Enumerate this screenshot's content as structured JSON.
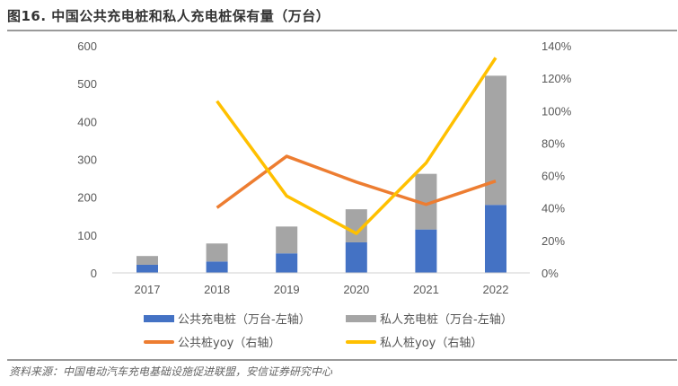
{
  "title": "图16. 中国公共充电桩和私人充电桩保有量（万台）",
  "source": "资料来源：中国电动汽车充电基础设施促进联盟，安信证券研究中心",
  "chart_data": {
    "type": "bar",
    "stacked": true,
    "title": "图16. 中国公共充电桩和私人充电桩保有量（万台）",
    "categories": [
      "2017",
      "2018",
      "2019",
      "2020",
      "2021",
      "2022"
    ],
    "left_axis": {
      "min": 0,
      "max": 600,
      "ticks": [
        "0",
        "100",
        "200",
        "300",
        "400",
        "500",
        "600"
      ]
    },
    "right_axis": {
      "min": 0,
      "max": 140,
      "ticks": [
        "0%",
        "20%",
        "40%",
        "60%",
        "80%",
        "100%",
        "120%",
        "140%"
      ]
    },
    "series": [
      {
        "name": "公共充电桩（万台-左轴）",
        "type": "bar",
        "axis": "left",
        "color": "#4472C4",
        "values": [
          21.4,
          30.0,
          51.6,
          80.7,
          114.7,
          179.7
        ]
      },
      {
        "name": "私人充电桩（万台-左轴）",
        "type": "bar",
        "axis": "left",
        "color": "#A5A5A5",
        "values": [
          23.2,
          47.7,
          70.9,
          87.4,
          147.0,
          341.2
        ]
      },
      {
        "name": "公共桩yoy（右轴）",
        "type": "line",
        "axis": "right",
        "color": "#ED7D31",
        "values": [
          null,
          40.2,
          71.9,
          56.0,
          42.2,
          56.6
        ]
      },
      {
        "name": "私人桩yoy（右轴）",
        "type": "line",
        "axis": "right",
        "color": "#FFC000",
        "values": [
          null,
          105.9,
          47.4,
          24.3,
          67.7,
          132.6
        ]
      }
    ],
    "grid": false,
    "legend": "bottom"
  }
}
